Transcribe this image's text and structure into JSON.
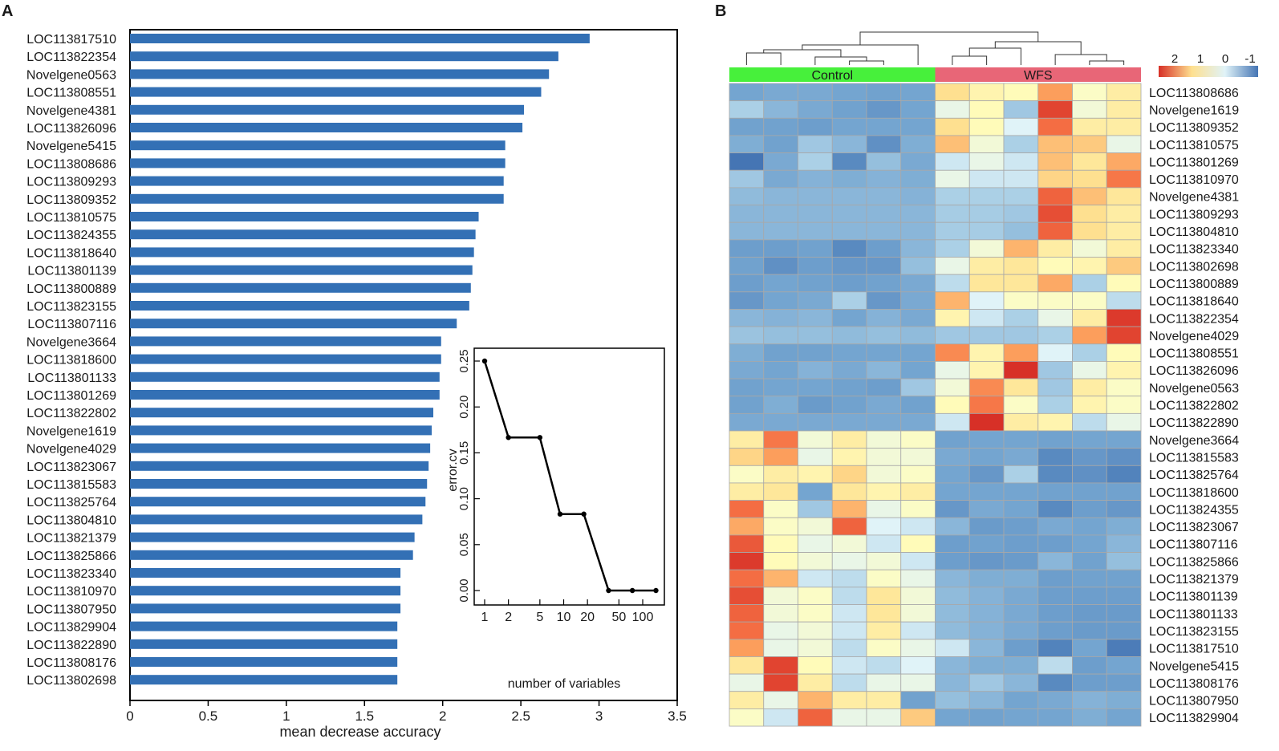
{
  "panel_a_label": "A",
  "panel_b_label": "B",
  "chart_data": [
    {
      "type": "bar",
      "orientation": "horizontal",
      "panel": "A",
      "title": "",
      "xlabel": "mean decrease accuracy",
      "ylabel": "",
      "xlim": [
        0,
        3.5
      ],
      "xticks": [
        0,
        0.5,
        1,
        1.5,
        2,
        2.5,
        3,
        3.5
      ],
      "xtick_labels": [
        "0",
        "0.5",
        "1",
        "1.5",
        "2",
        "2.5",
        "3",
        "3.5"
      ],
      "bar_color": "#3370b5",
      "categories": [
        "LOC113817510",
        "LOC113822354",
        "Novelgene0563",
        "LOC113808551",
        "Novelgene4381",
        "LOC113826096",
        "Novelgene5415",
        "LOC113808686",
        "LOC113809293",
        "LOC113809352",
        "LOC113810575",
        "LOC113824355",
        "LOC113818640",
        "LOC113801139",
        "LOC113800889",
        "LOC113823155",
        "LOC113807116",
        "Novelgene3664",
        "LOC113818600",
        "LOC113801133",
        "LOC113801269",
        "LOC113822802",
        "Novelgene1619",
        "Novelgene4029",
        "LOC113823067",
        "LOC113815583",
        "LOC113825764",
        "LOC113804810",
        "LOC113821379",
        "LOC113825866",
        "LOC113823340",
        "LOC113810970",
        "LOC113807950",
        "LOC113829904",
        "LOC113822890",
        "LOC113808176",
        "LOC113802698"
      ],
      "values": [
        2.94,
        2.74,
        2.68,
        2.63,
        2.52,
        2.51,
        2.4,
        2.4,
        2.39,
        2.39,
        2.23,
        2.21,
        2.2,
        2.19,
        2.18,
        2.17,
        2.09,
        1.99,
        1.99,
        1.98,
        1.98,
        1.94,
        1.93,
        1.92,
        1.91,
        1.9,
        1.89,
        1.87,
        1.82,
        1.81,
        1.73,
        1.73,
        1.73,
        1.71,
        1.71,
        1.71,
        1.71
      ]
    },
    {
      "type": "line",
      "panel": "A-inset",
      "title": "",
      "xlabel": "number of variables",
      "ylabel": "error.cv",
      "x_scale": "log",
      "xticks": [
        1,
        2,
        5,
        10,
        20,
        50,
        100
      ],
      "xtick_labels": [
        "1",
        "2",
        "5",
        "10",
        "20",
        "50",
        "100"
      ],
      "ylim": [
        0,
        0.25
      ],
      "yticks": [
        0,
        0.05,
        0.1,
        0.15,
        0.2,
        0.25
      ],
      "ytick_labels": [
        "0.00",
        "0.05",
        "0.10",
        "0.15",
        "0.20",
        "0.25"
      ],
      "step": true,
      "x": [
        1,
        2,
        5,
        9,
        18,
        37,
        74,
        147
      ],
      "y": [
        0.25,
        0.1667,
        0.1667,
        0.0833,
        0.0833,
        0.0,
        0.0,
        0.0
      ]
    },
    {
      "type": "heatmap",
      "panel": "B",
      "title": "",
      "groups": [
        {
          "name": "Control",
          "columns": 6,
          "color": "#47f03b"
        },
        {
          "name": "WFS",
          "columns": 6,
          "color": "#e86677"
        }
      ],
      "legend": {
        "tick_labels": [
          "2",
          "1",
          "0",
          "-1"
        ],
        "colors": [
          "#d73027",
          "#fee090",
          "#e0f3f8",
          "#4575b4"
        ]
      },
      "color_scale": {
        "min": -1.5,
        "max": 2.5,
        "stops": [
          {
            "value": -1.5,
            "color": "#4575b4"
          },
          {
            "value": -0.8,
            "color": "#74a5d0"
          },
          {
            "value": -0.3,
            "color": "#abd0e6"
          },
          {
            "value": 0.0,
            "color": "#e0f3f8"
          },
          {
            "value": 0.35,
            "color": "#fffebe"
          },
          {
            "value": 0.8,
            "color": "#fee090"
          },
          {
            "value": 1.4,
            "color": "#fc9e5c"
          },
          {
            "value": 1.9,
            "color": "#f46d43"
          },
          {
            "value": 2.5,
            "color": "#d73027"
          }
        ]
      },
      "rows": [
        "LOC113808686",
        "Novelgene1619",
        "LOC113809352",
        "LOC113810575",
        "LOC113801269",
        "LOC113810970",
        "Novelgene4381",
        "LOC113809293",
        "LOC113804810",
        "LOC113823340",
        "LOC113802698",
        "LOC113800889",
        "LOC113818640",
        "LOC113822354",
        "Novelgene4029",
        "LOC113808551",
        "LOC113826096",
        "Novelgene0563",
        "LOC113822802",
        "LOC113822890",
        "Novelgene3664",
        "LOC113815583",
        "LOC113825764",
        "LOC113818600",
        "LOC113824355",
        "LOC113823067",
        "LOC113807116",
        "LOC113825866",
        "LOC113821379",
        "LOC113801139",
        "LOC113801133",
        "LOC113823155",
        "LOC113817510",
        "Novelgene5415",
        "LOC113808176",
        "LOC113807950",
        "LOC113829904"
      ],
      "values": [
        [
          -0.8,
          -0.75,
          -0.75,
          -0.8,
          -0.85,
          -0.8,
          0.8,
          0.5,
          0.4,
          1.4,
          0.3,
          0.6
        ],
        [
          -0.3,
          -0.6,
          -0.75,
          -0.85,
          -1.0,
          -0.8,
          0.1,
          0.4,
          -0.4,
          2.3,
          0.2,
          0.6
        ],
        [
          -0.85,
          -0.85,
          -0.9,
          -0.8,
          -0.8,
          -0.8,
          0.8,
          0.4,
          0.0,
          1.9,
          0.6,
          0.6
        ],
        [
          -0.7,
          -0.85,
          -0.4,
          -0.6,
          -1.1,
          -0.7,
          1.1,
          0.2,
          -0.3,
          1.1,
          1.0,
          0.1
        ],
        [
          -1.5,
          -0.75,
          -0.3,
          -1.2,
          -0.5,
          -0.75,
          -0.1,
          0.1,
          -0.1,
          1.1,
          0.7,
          1.3
        ],
        [
          -0.4,
          -0.75,
          -0.65,
          -0.7,
          -0.65,
          -0.7,
          0.1,
          -0.1,
          -0.1,
          0.9,
          0.8,
          1.8
        ],
        [
          -0.55,
          -0.6,
          -0.6,
          -0.6,
          -0.6,
          -0.65,
          -0.3,
          -0.3,
          -0.3,
          2.0,
          1.1,
          0.7
        ],
        [
          -0.6,
          -0.6,
          -0.6,
          -0.6,
          -0.6,
          -0.6,
          -0.35,
          -0.35,
          -0.4,
          2.2,
          0.8,
          0.6
        ],
        [
          -0.6,
          -0.6,
          -0.6,
          -0.6,
          -0.6,
          -0.6,
          -0.35,
          -0.35,
          -0.5,
          2.0,
          0.8,
          0.6
        ],
        [
          -0.9,
          -0.9,
          -0.85,
          -1.2,
          -0.9,
          -0.6,
          -0.3,
          0.2,
          1.2,
          0.6,
          0.2,
          0.6
        ],
        [
          -0.85,
          -1.1,
          -0.9,
          -1.0,
          -1.0,
          -0.5,
          0.1,
          0.6,
          0.7,
          0.4,
          0.5,
          1.0
        ],
        [
          -0.9,
          -0.8,
          -0.85,
          -0.9,
          -0.85,
          -0.75,
          -0.2,
          0.7,
          0.7,
          1.3,
          -0.3,
          0.4
        ],
        [
          -1.0,
          -0.8,
          -0.75,
          -0.3,
          -1.0,
          -0.75,
          1.2,
          0.0,
          0.3,
          0.3,
          0.3,
          -0.2
        ],
        [
          -0.6,
          -0.65,
          -0.6,
          -0.8,
          -0.65,
          -0.75,
          0.5,
          -0.1,
          -0.3,
          0.1,
          0.6,
          2.4
        ],
        [
          -0.45,
          -0.5,
          -0.5,
          -0.55,
          -0.5,
          -0.55,
          -0.4,
          -0.4,
          -0.4,
          -0.3,
          1.4,
          2.3
        ],
        [
          -0.7,
          -0.85,
          -0.85,
          -0.8,
          -0.8,
          -0.8,
          1.6,
          0.5,
          1.4,
          0.0,
          -0.3,
          0.4
        ],
        [
          -0.75,
          -0.8,
          -0.65,
          -0.75,
          -0.6,
          -0.8,
          0.1,
          0.5,
          2.5,
          -0.4,
          0.1,
          0.5
        ],
        [
          -0.85,
          -0.8,
          -0.8,
          -0.85,
          -0.9,
          -0.4,
          0.2,
          1.6,
          0.7,
          -0.4,
          0.6,
          0.3
        ],
        [
          -0.85,
          -0.7,
          -0.95,
          -0.85,
          -0.75,
          -0.85,
          0.4,
          1.8,
          0.3,
          -0.3,
          0.5,
          0.3
        ],
        [
          -0.75,
          -0.75,
          -0.75,
          -0.75,
          -0.75,
          -0.75,
          -0.1,
          2.5,
          0.6,
          0.5,
          -0.2,
          0.1
        ],
        [
          0.6,
          1.8,
          0.2,
          0.6,
          0.2,
          0.3,
          -0.85,
          -0.8,
          -0.8,
          -0.85,
          -0.8,
          -0.8
        ],
        [
          0.9,
          1.4,
          0.1,
          0.5,
          0.2,
          0.2,
          -0.75,
          -0.8,
          -0.75,
          -1.2,
          -1.0,
          -1.1
        ],
        [
          0.3,
          0.6,
          0.5,
          0.9,
          0.2,
          0.3,
          -0.8,
          -1.0,
          -0.3,
          -1.2,
          -1.1,
          -1.3
        ],
        [
          0.6,
          0.7,
          -0.8,
          0.7,
          0.5,
          0.6,
          -0.8,
          -0.8,
          -0.8,
          -0.85,
          -0.85,
          -0.85
        ],
        [
          1.9,
          0.3,
          -0.4,
          1.2,
          0.1,
          0.3,
          -1.0,
          -0.75,
          -0.8,
          -1.2,
          -0.9,
          -1.0
        ],
        [
          1.3,
          0.3,
          0.2,
          2.0,
          0.0,
          -0.1,
          -0.6,
          -0.95,
          -0.9,
          -0.75,
          -0.8,
          -0.7
        ],
        [
          2.1,
          0.4,
          0.1,
          0.2,
          -0.1,
          0.4,
          -0.9,
          -0.85,
          -0.9,
          -0.9,
          -0.8,
          -0.6
        ],
        [
          2.4,
          0.4,
          0.2,
          0.1,
          0.2,
          -0.1,
          -0.9,
          -1.0,
          -0.95,
          -0.6,
          -0.85,
          -0.5
        ],
        [
          1.9,
          1.2,
          -0.1,
          -0.2,
          0.3,
          0.1,
          -0.6,
          -0.7,
          -0.7,
          -0.9,
          -0.85,
          -0.85
        ],
        [
          2.2,
          0.2,
          0.3,
          -0.2,
          0.7,
          0.2,
          -0.55,
          -0.65,
          -0.75,
          -0.9,
          -0.9,
          -0.9
        ],
        [
          2.0,
          0.2,
          0.3,
          -0.1,
          0.7,
          0.2,
          -0.55,
          -0.65,
          -0.75,
          -0.9,
          -0.95,
          -0.95
        ],
        [
          1.9,
          0.1,
          0.2,
          -0.1,
          0.6,
          -0.1,
          -0.55,
          -0.65,
          -0.75,
          -0.9,
          -0.95,
          -0.95
        ],
        [
          1.4,
          0.1,
          0.2,
          -0.2,
          0.3,
          0.1,
          -0.1,
          -0.6,
          -0.9,
          -1.3,
          -0.8,
          -1.4
        ],
        [
          0.7,
          2.3,
          0.4,
          -0.1,
          -0.2,
          0.0,
          -0.6,
          -0.7,
          -0.7,
          -0.2,
          -0.9,
          -0.8
        ],
        [
          0.1,
          2.3,
          0.6,
          -0.2,
          0.1,
          0.1,
          -0.6,
          -0.4,
          -0.6,
          -1.2,
          -0.9,
          -0.9
        ],
        [
          0.6,
          0.1,
          1.2,
          0.6,
          0.6,
          -0.85,
          -0.5,
          -0.6,
          -0.8,
          -0.75,
          -0.65,
          -0.7
        ],
        [
          0.3,
          -0.1,
          2.0,
          0.1,
          0.1,
          1.0,
          -0.8,
          -0.85,
          -0.8,
          -0.8,
          -0.7,
          -0.8
        ]
      ]
    }
  ]
}
